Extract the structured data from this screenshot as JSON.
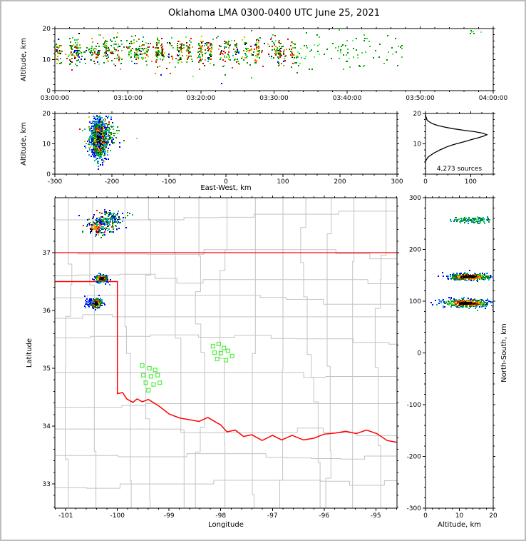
{
  "title": "Oklahoma LMA 0300-0400 UTC June 25, 2021",
  "colors": {
    "axis": "#000000",
    "county_line": "#c3c3c3",
    "state_border": "#ff0000",
    "station_marker": "#55ee44",
    "histogram_line": "#000000"
  },
  "palettes": {
    "mixed": [
      [
        "#008f00",
        26
      ],
      [
        "#2fd42f",
        14
      ],
      [
        "#ff0000",
        11
      ],
      [
        "#ff8800",
        8
      ],
      [
        "#b45500",
        5
      ],
      [
        "#990000",
        6
      ],
      [
        "#0000ee",
        6
      ],
      [
        "#00b4b4",
        4
      ],
      [
        "#c8c800",
        9
      ],
      [
        "#000000",
        3
      ],
      [
        "#55ff55",
        8
      ]
    ],
    "green": [
      [
        "#008f00",
        55
      ],
      [
        "#2fd42f",
        30
      ],
      [
        "#55ff55",
        15
      ]
    ],
    "teal": [
      [
        "#008f8f",
        30
      ],
      [
        "#00c8c8",
        22
      ],
      [
        "#008f00",
        25
      ],
      [
        "#006450",
        12
      ],
      [
        "#2fd42f",
        11
      ]
    ],
    "stormLoose": [
      [
        "#0000ee",
        24
      ],
      [
        "#2288ff",
        10
      ],
      [
        "#00b4b4",
        12
      ],
      [
        "#008f00",
        20
      ],
      [
        "#2fd42f",
        12
      ],
      [
        "#ff0000",
        7
      ],
      [
        "#ff8800",
        5
      ],
      [
        "#c8c800",
        5
      ],
      [
        "#000000",
        5
      ]
    ],
    "greenBlue": [
      [
        "#008f00",
        38
      ],
      [
        "#0000ee",
        32
      ],
      [
        "#00b4b4",
        30
      ]
    ],
    "warm": [
      [
        "#ff0000",
        30
      ],
      [
        "#ff8800",
        25
      ],
      [
        "#c8c800",
        25
      ],
      [
        "#990000",
        20
      ]
    ],
    "blue": [
      [
        "#0000ee",
        70
      ],
      [
        "#2288ff",
        30
      ]
    ],
    "mixedBlue": [
      [
        "#0000ee",
        30
      ],
      [
        "#00b4b4",
        15
      ],
      [
        "#008f00",
        25
      ],
      [
        "#2fd42f",
        12
      ],
      [
        "#ff0000",
        8
      ],
      [
        "#c8c800",
        10
      ]
    ],
    "radial_core": [
      [
        "#000000",
        70
      ],
      [
        "#500000",
        30
      ]
    ],
    "radial_mid": [
      [
        "#cc0000",
        30
      ],
      [
        "#ff5500",
        25
      ],
      [
        "#ffaa00",
        20
      ],
      [
        "#c8c800",
        25
      ]
    ],
    "radial_outer": [
      [
        "#008f00",
        45
      ],
      [
        "#2fd42f",
        30
      ],
      [
        "#007800",
        25
      ]
    ],
    "radial_fringe": [
      [
        "#0000ee",
        45
      ],
      [
        "#00aacc",
        30
      ],
      [
        "#2288ff",
        25
      ]
    ]
  },
  "chart_data": [
    {
      "id": "time_height",
      "type": "scatter",
      "xlabel": "",
      "ylabel": "Altitude, km",
      "xlim": [
        0,
        3600
      ],
      "ylim": [
        0,
        20
      ],
      "xticks": [
        0,
        600,
        1200,
        1800,
        2400,
        3000,
        3600
      ],
      "xticklabels": [
        "03:00:00",
        "03:10:00",
        "03:20:00",
        "03:30:00",
        "03:40:00",
        "03:50:00",
        "04:00:00"
      ],
      "yticks": [
        0,
        10,
        20
      ],
      "xminor": 120,
      "yminor": 2,
      "clusters": [
        {
          "kind": "bursts",
          "t0": 10,
          "t1": 1950,
          "nbursts": 58,
          "per_burst": 13,
          "t_sd": 11,
          "alt_mean": 12.6,
          "alt_sd": 2.0,
          "palette": "mixed"
        },
        {
          "kind": "uniform",
          "t0": 0,
          "t1": 2000,
          "n": 170,
          "alt_mean": 12.2,
          "alt_sd": 3.2,
          "palette": "mixed"
        },
        {
          "kind": "uniform",
          "t0": 1950,
          "t1": 2560,
          "n": 75,
          "alt_mean": 12.0,
          "alt_sd": 2.6,
          "palette": "green"
        },
        {
          "kind": "uniform",
          "t0": 2560,
          "t1": 2920,
          "n": 22,
          "alt_mean": 11.3,
          "alt_sd": 2.9,
          "palette": "green"
        },
        {
          "kind": "uniform",
          "t0": 3390,
          "t1": 3520,
          "n": 6,
          "alt_mean": 18.7,
          "alt_sd": 0.7,
          "palette": "green"
        }
      ]
    },
    {
      "id": "ew_height",
      "type": "scatter",
      "xlabel": "East-West, km",
      "ylabel": "Altitude, km",
      "xlim": [
        -300,
        300
      ],
      "ylim": [
        0,
        20
      ],
      "xticks": [
        -300,
        -200,
        -100,
        0,
        100,
        200,
        300
      ],
      "yticks": [
        0,
        10,
        20
      ],
      "xminor": 20,
      "yminor": 2,
      "clusters": [
        {
          "kind": "gauss",
          "cx": -222,
          "cy": 11.5,
          "sx": 6,
          "sy": 3.1,
          "n": 1000,
          "radial": true
        },
        {
          "kind": "gauss",
          "cx": -219,
          "cy": 12.5,
          "sx": 14,
          "sy": 3.4,
          "n": 230,
          "palette": "mixedBlue"
        },
        {
          "kind": "gauss",
          "cx": -196,
          "cy": 13,
          "sx": 14,
          "sy": 2.2,
          "n": 22,
          "palette": "green"
        }
      ]
    },
    {
      "id": "histogram",
      "type": "line",
      "xlabel": "",
      "ylabel": "",
      "annotation": "4,273 sources",
      "xlim": [
        0,
        150
      ],
      "ylim": [
        0,
        20
      ],
      "xticks": [
        0,
        100
      ],
      "yticks": [
        0,
        10,
        20
      ],
      "yticklabels": [
        "",
        "10",
        "20"
      ],
      "xminor": 25,
      "yminor": 2,
      "alt_step": 0.5,
      "counts": [
        0,
        0,
        0,
        0,
        0,
        0,
        0,
        0,
        0,
        1,
        3,
        5,
        9,
        14,
        19,
        26,
        32,
        40,
        47,
        57,
        68,
        81,
        93,
        104,
        117,
        128,
        136,
        127,
        109,
        83,
        61,
        43,
        28,
        18,
        11,
        6,
        3,
        2,
        1,
        0,
        0
      ]
    },
    {
      "id": "plan",
      "type": "scatter",
      "xlabel": "Longitude",
      "ylabel": "Latitude",
      "xlim": [
        -101.21,
        -94.59
      ],
      "ylim": [
        32.58,
        37.95
      ],
      "xticks": [
        -101,
        -100,
        -99,
        -98,
        -97,
        -96,
        -95
      ],
      "yticks": [
        33,
        34,
        35,
        36,
        37
      ],
      "xminor": 0.2,
      "yminor": 0.2,
      "state_border": {
        "north_line": [
          [
            -101.21,
            37
          ],
          [
            -94.59,
            37
          ]
        ],
        "west_and_river": [
          [
            -101.21,
            36.5
          ],
          [
            -100,
            36.5
          ],
          [
            -100,
            34.56
          ],
          [
            -99.9,
            34.58
          ],
          [
            -99.82,
            34.47
          ],
          [
            -99.7,
            34.41
          ],
          [
            -99.62,
            34.47
          ],
          [
            -99.52,
            34.42
          ],
          [
            -99.4,
            34.46
          ],
          [
            -99.2,
            34.35
          ],
          [
            -99.0,
            34.21
          ],
          [
            -98.8,
            34.14
          ],
          [
            -98.6,
            34.11
          ],
          [
            -98.42,
            34.08
          ],
          [
            -98.25,
            34.15
          ],
          [
            -98.1,
            34.07
          ],
          [
            -98.0,
            34.02
          ],
          [
            -97.88,
            33.9
          ],
          [
            -97.72,
            33.93
          ],
          [
            -97.56,
            33.82
          ],
          [
            -97.4,
            33.85
          ],
          [
            -97.2,
            33.75
          ],
          [
            -97.0,
            33.84
          ],
          [
            -96.82,
            33.76
          ],
          [
            -96.62,
            33.84
          ],
          [
            -96.4,
            33.76
          ],
          [
            -96.2,
            33.79
          ],
          [
            -96.0,
            33.86
          ],
          [
            -95.78,
            33.88
          ],
          [
            -95.58,
            33.91
          ],
          [
            -95.38,
            33.87
          ],
          [
            -95.18,
            33.93
          ],
          [
            -94.98,
            33.87
          ],
          [
            -94.78,
            33.75
          ],
          [
            -94.59,
            33.72
          ]
        ]
      },
      "stations": [
        [
          -99.52,
          35.05
        ],
        [
          -99.38,
          35.0
        ],
        [
          -99.27,
          34.97
        ],
        [
          -99.5,
          34.88
        ],
        [
          -99.35,
          34.86
        ],
        [
          -99.22,
          34.88
        ],
        [
          -99.45,
          34.75
        ],
        [
          -99.3,
          34.72
        ],
        [
          -99.18,
          34.75
        ],
        [
          -99.4,
          34.62
        ],
        [
          -98.15,
          35.38
        ],
        [
          -98.04,
          35.42
        ],
        [
          -97.94,
          35.35
        ],
        [
          -98.12,
          35.27
        ],
        [
          -98.0,
          35.26
        ],
        [
          -97.86,
          35.3
        ],
        [
          -97.78,
          35.21
        ],
        [
          -98.07,
          35.16
        ],
        [
          -97.9,
          35.14
        ]
      ],
      "clusters": [
        {
          "kind": "gauss",
          "cx": -100.3,
          "cy": 37.5,
          "sx": 0.16,
          "sy": 0.1,
          "n": 190,
          "palette": "stormLoose"
        },
        {
          "kind": "gauss",
          "cx": -100.1,
          "cy": 37.61,
          "sx": 0.12,
          "sy": 0.06,
          "n": 55,
          "palette": "greenBlue"
        },
        {
          "kind": "gauss",
          "cx": -100.42,
          "cy": 37.43,
          "sx": 0.05,
          "sy": 0.04,
          "n": 30,
          "palette": "warm"
        },
        {
          "kind": "gauss",
          "cx": -100.31,
          "cy": 36.55,
          "sx": 0.06,
          "sy": 0.03,
          "n": 200,
          "radial": true
        },
        {
          "kind": "gauss",
          "cx": -100.41,
          "cy": 36.12,
          "sx": 0.055,
          "sy": 0.042,
          "n": 185,
          "radial": true
        },
        {
          "kind": "gauss",
          "cx": -100.56,
          "cy": 36.13,
          "sx": 0.05,
          "sy": 0.05,
          "n": 30,
          "palette": "blue"
        }
      ]
    },
    {
      "id": "ns_height",
      "type": "scatter",
      "xlabel": "Altitude, km",
      "ylabel": "North-South, km",
      "xlim": [
        0,
        20
      ],
      "ylim": [
        -300,
        300
      ],
      "xticks": [
        0,
        10,
        20
      ],
      "yticks": [
        -300,
        -200,
        -100,
        0,
        100,
        200,
        300
      ],
      "xminor": 2,
      "yminor": 20,
      "clusters": [
        {
          "kind": "gauss",
          "cx": 14,
          "cy": 257,
          "sx": 2.6,
          "sy": 3.5,
          "n": 120,
          "palette": "teal"
        },
        {
          "kind": "gauss",
          "cx": 12.8,
          "cy": 147,
          "sx": 3.2,
          "sy": 3.2,
          "n": 400,
          "radial": true
        },
        {
          "kind": "gauss",
          "cx": 12.2,
          "cy": 96,
          "sx": 3.4,
          "sy": 4.0,
          "n": 400,
          "radial": true
        }
      ]
    }
  ]
}
